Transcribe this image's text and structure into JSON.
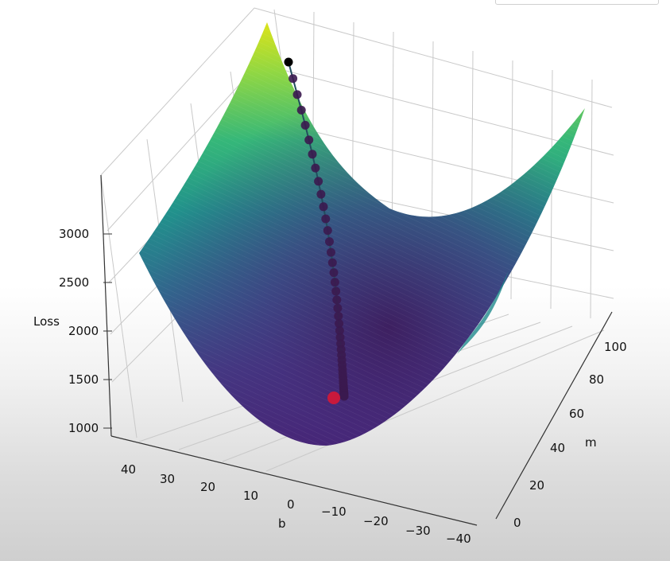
{
  "chart_data": {
    "type": "surface3d",
    "title": "",
    "xlabel": "m",
    "ylabel": "b",
    "zlabel": "Loss",
    "m_ticks": [
      "0",
      "20",
      "40",
      "60",
      "80",
      "100"
    ],
    "b_ticks": [
      "40",
      "30",
      "20",
      "10",
      "0",
      "−10",
      "−20",
      "−30",
      "−40"
    ],
    "z_ticks": [
      "1000",
      "1500",
      "2000",
      "2500",
      "3000"
    ],
    "m_range": [
      0,
      110
    ],
    "b_range": [
      -45,
      45
    ],
    "z_range": [
      900,
      3600
    ],
    "colormap": "viridis",
    "grid": true,
    "descent_path": {
      "marker_color": "#3b1a4f",
      "start_color": "#000000",
      "end_color": "#c8193c",
      "start": {
        "m": 5,
        "b": 40,
        "loss": 3200
      },
      "end": {
        "m": 38,
        "b": 8,
        "loss": 1180
      },
      "points": 45
    }
  },
  "ui": {
    "corner_widget": ""
  }
}
